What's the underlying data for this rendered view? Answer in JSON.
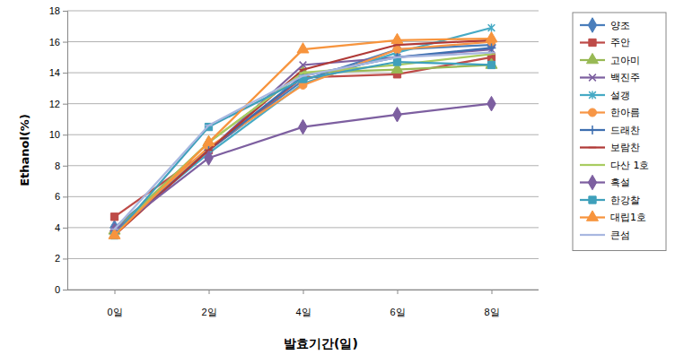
{
  "chart_data": {
    "type": "line",
    "x_label": "발효기간(일)",
    "y_label": "Ethanol(%)",
    "categories": [
      "0일",
      "2일",
      "4일",
      "6일",
      "8일"
    ],
    "ylim": [
      0,
      18
    ],
    "yticks": [
      0,
      2,
      4,
      6,
      8,
      10,
      12,
      14,
      16,
      18
    ],
    "grid": true,
    "legend": "right",
    "series": [
      {
        "name": "양조",
        "color": "#4a7ebb",
        "marker": "diamond",
        "values": [
          4.0,
          9.0,
          13.5,
          15.5,
          15.8
        ]
      },
      {
        "name": "주안",
        "color": "#be4b48",
        "marker": "square",
        "values": [
          4.7,
          9.0,
          13.7,
          13.9,
          15.0
        ]
      },
      {
        "name": "고아미",
        "color": "#98b954",
        "marker": "triangle",
        "values": [
          3.8,
          9.5,
          14.0,
          14.2,
          14.5
        ]
      },
      {
        "name": "백진주",
        "color": "#7d60a0",
        "marker": "x",
        "values": [
          3.8,
          9.0,
          14.5,
          15.0,
          15.5
        ]
      },
      {
        "name": "설갱",
        "color": "#46aac5",
        "marker": "star",
        "values": [
          3.8,
          8.8,
          13.3,
          15.3,
          16.9
        ]
      },
      {
        "name": "한아름",
        "color": "#f79646",
        "marker": "circle",
        "values": [
          3.7,
          9.2,
          13.2,
          15.5,
          16.0
        ]
      },
      {
        "name": "드래찬",
        "color": "#3d6fb0",
        "marker": "plus",
        "values": [
          3.6,
          9.0,
          13.8,
          15.0,
          15.6
        ]
      },
      {
        "name": "보람찬",
        "color": "#b03a37",
        "marker": "dash",
        "values": [
          3.5,
          9.0,
          14.2,
          15.8,
          16.1
        ]
      },
      {
        "name": "다산 1호",
        "color": "#a9cc62",
        "marker": "dash",
        "values": [
          3.6,
          9.5,
          14.0,
          14.5,
          15.2
        ]
      },
      {
        "name": "흑설",
        "color": "#7d5fa0",
        "marker": "diamond",
        "values": [
          3.8,
          8.5,
          10.5,
          11.3,
          12.0
        ]
      },
      {
        "name": "한강찰",
        "color": "#3fa0bb",
        "marker": "square",
        "values": [
          3.5,
          10.5,
          13.6,
          14.7,
          14.5
        ]
      },
      {
        "name": "대립1호",
        "color": "#f7943d",
        "marker": "triangle",
        "values": [
          3.5,
          9.5,
          15.5,
          16.1,
          16.2
        ]
      },
      {
        "name": "큰섬",
        "color": "#a8b7e0",
        "marker": "dash",
        "values": [
          3.9,
          10.6,
          13.8,
          15.0,
          15.3
        ]
      }
    ]
  }
}
